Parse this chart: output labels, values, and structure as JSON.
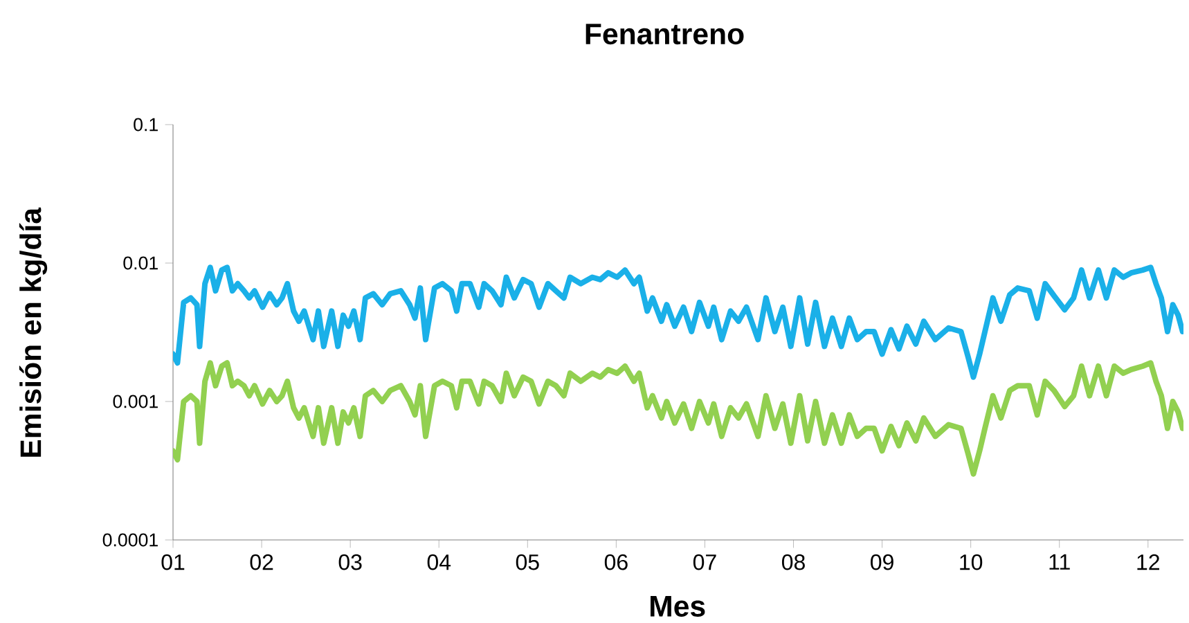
{
  "chart_data": {
    "type": "line",
    "title": "Fenantreno",
    "xlabel": "Mes",
    "ylabel": "Emisión en kg/día",
    "log": "y",
    "grid": false,
    "line_style": "solid",
    "x": [
      1.0,
      1.05,
      1.12,
      1.2,
      1.27,
      1.3,
      1.36,
      1.42,
      1.48,
      1.55,
      1.61,
      1.67,
      1.73,
      1.8,
      1.86,
      1.92,
      2.01,
      2.09,
      2.17,
      2.23,
      2.29,
      2.36,
      2.42,
      2.48,
      2.58,
      2.64,
      2.7,
      2.79,
      2.86,
      2.92,
      2.98,
      3.04,
      3.11,
      3.17,
      3.26,
      3.36,
      3.45,
      3.57,
      3.67,
      3.73,
      3.79,
      3.85,
      3.95,
      4.04,
      4.14,
      4.2,
      4.26,
      4.35,
      4.45,
      4.51,
      4.6,
      4.7,
      4.76,
      4.85,
      4.95,
      5.04,
      5.13,
      5.23,
      5.32,
      5.41,
      5.48,
      5.6,
      5.73,
      5.82,
      5.91,
      6.01,
      6.1,
      6.2,
      6.26,
      6.35,
      6.41,
      6.51,
      6.57,
      6.66,
      6.76,
      6.85,
      6.94,
      7.04,
      7.1,
      7.19,
      7.29,
      7.38,
      7.47,
      7.6,
      7.69,
      7.79,
      7.88,
      7.97,
      8.07,
      8.16,
      8.25,
      8.35,
      8.44,
      8.54,
      8.63,
      8.72,
      8.82,
      8.91,
      9.0,
      9.1,
      9.19,
      9.28,
      9.38,
      9.47,
      9.6,
      9.75,
      9.89,
      9.97,
      10.03,
      10.1,
      10.16,
      10.25,
      10.34,
      10.44,
      10.53,
      10.66,
      10.75,
      10.84,
      10.94,
      11.06,
      11.16,
      11.25,
      11.34,
      11.44,
      11.53,
      11.62,
      11.72,
      11.81,
      11.94,
      12.03,
      12.09,
      12.15,
      12.22,
      12.28,
      12.34,
      12.39
    ],
    "series": [
      {
        "color": "#1ab0e8",
        "values": [
          0.0022,
          0.0019,
          0.0052,
          0.0056,
          0.005,
          0.0025,
          0.0071,
          0.0093,
          0.0063,
          0.0089,
          0.0093,
          0.0063,
          0.0071,
          0.0063,
          0.0056,
          0.0063,
          0.0048,
          0.006,
          0.005,
          0.0056,
          0.0071,
          0.0045,
          0.0038,
          0.0045,
          0.0028,
          0.0045,
          0.0025,
          0.0045,
          0.0025,
          0.0042,
          0.0035,
          0.0045,
          0.0028,
          0.0056,
          0.006,
          0.005,
          0.006,
          0.0063,
          0.005,
          0.004,
          0.0066,
          0.0028,
          0.0066,
          0.0071,
          0.0063,
          0.0045,
          0.0071,
          0.0071,
          0.0048,
          0.0071,
          0.0063,
          0.005,
          0.0079,
          0.0056,
          0.0076,
          0.0071,
          0.0048,
          0.0071,
          0.0063,
          0.0056,
          0.0079,
          0.0071,
          0.0079,
          0.0076,
          0.0085,
          0.0079,
          0.0089,
          0.0071,
          0.0079,
          0.0045,
          0.0056,
          0.0038,
          0.005,
          0.0035,
          0.0048,
          0.0032,
          0.0052,
          0.0035,
          0.0048,
          0.0028,
          0.0045,
          0.0038,
          0.0048,
          0.0028,
          0.0056,
          0.0032,
          0.0048,
          0.0025,
          0.0056,
          0.0026,
          0.0052,
          0.0025,
          0.004,
          0.0025,
          0.004,
          0.0028,
          0.0032,
          0.0032,
          0.0022,
          0.0033,
          0.0024,
          0.0035,
          0.0026,
          0.0038,
          0.0028,
          0.0034,
          0.0032,
          0.0021,
          0.0015,
          0.0022,
          0.0032,
          0.0056,
          0.0038,
          0.0059,
          0.0066,
          0.0063,
          0.004,
          0.0071,
          0.0058,
          0.0046,
          0.0056,
          0.0089,
          0.0056,
          0.0089,
          0.0056,
          0.0089,
          0.0079,
          0.0085,
          0.0089,
          0.0093,
          0.0071,
          0.0056,
          0.0032,
          0.005,
          0.0042,
          0.0032
        ]
      },
      {
        "color": "#92d050",
        "values": [
          0.00044,
          0.00038,
          0.001,
          0.0011,
          0.001,
          0.0005,
          0.0014,
          0.0019,
          0.0013,
          0.0018,
          0.0019,
          0.0013,
          0.0014,
          0.0013,
          0.0011,
          0.0013,
          0.00096,
          0.0012,
          0.001,
          0.0011,
          0.0014,
          0.0009,
          0.00076,
          0.0009,
          0.00056,
          0.0009,
          0.0005,
          0.0009,
          0.0005,
          0.00084,
          0.0007,
          0.0009,
          0.00056,
          0.0011,
          0.0012,
          0.001,
          0.0012,
          0.0013,
          0.001,
          0.0008,
          0.0013,
          0.00056,
          0.0013,
          0.0014,
          0.0013,
          0.0009,
          0.0014,
          0.0014,
          0.00096,
          0.0014,
          0.0013,
          0.001,
          0.0016,
          0.0011,
          0.0015,
          0.0014,
          0.00096,
          0.0014,
          0.0013,
          0.0011,
          0.0016,
          0.0014,
          0.0016,
          0.0015,
          0.0017,
          0.0016,
          0.0018,
          0.0014,
          0.0016,
          0.0009,
          0.0011,
          0.00076,
          0.001,
          0.0007,
          0.00096,
          0.00064,
          0.001,
          0.0007,
          0.00096,
          0.00056,
          0.0009,
          0.00076,
          0.00096,
          0.00056,
          0.0011,
          0.00064,
          0.00096,
          0.0005,
          0.0011,
          0.00052,
          0.001,
          0.0005,
          0.0008,
          0.0005,
          0.0008,
          0.00056,
          0.00064,
          0.00064,
          0.00044,
          0.00066,
          0.00048,
          0.0007,
          0.00052,
          0.00076,
          0.00056,
          0.00068,
          0.00064,
          0.00042,
          0.0003,
          0.00044,
          0.00064,
          0.0011,
          0.00076,
          0.0012,
          0.0013,
          0.0013,
          0.0008,
          0.0014,
          0.0012,
          0.00092,
          0.0011,
          0.0018,
          0.0011,
          0.0018,
          0.0011,
          0.0018,
          0.0016,
          0.0017,
          0.0018,
          0.0019,
          0.0014,
          0.0011,
          0.00064,
          0.001,
          0.00084,
          0.00064
        ]
      }
    ],
    "xlim": [
      1,
      12.4
    ],
    "xticks": [
      {
        "value": 1,
        "label": "01"
      },
      {
        "value": 2,
        "label": "02"
      },
      {
        "value": 3,
        "label": "03"
      },
      {
        "value": 4,
        "label": "04"
      },
      {
        "value": 5,
        "label": "05"
      },
      {
        "value": 6,
        "label": "06"
      },
      {
        "value": 7,
        "label": "07"
      },
      {
        "value": 8,
        "label": "08"
      },
      {
        "value": 9,
        "label": "09"
      },
      {
        "value": 10,
        "label": "10"
      },
      {
        "value": 11,
        "label": "11"
      },
      {
        "value": 12,
        "label": "12"
      }
    ],
    "ylim": [
      0.0001,
      0.1
    ],
    "yticks": [
      {
        "value": 0.0001,
        "label": "0.0001"
      },
      {
        "value": 0.001,
        "label": "0.001"
      },
      {
        "value": 0.01,
        "label": "0.01"
      },
      {
        "value": 0.1,
        "label": "0.1"
      }
    ]
  }
}
